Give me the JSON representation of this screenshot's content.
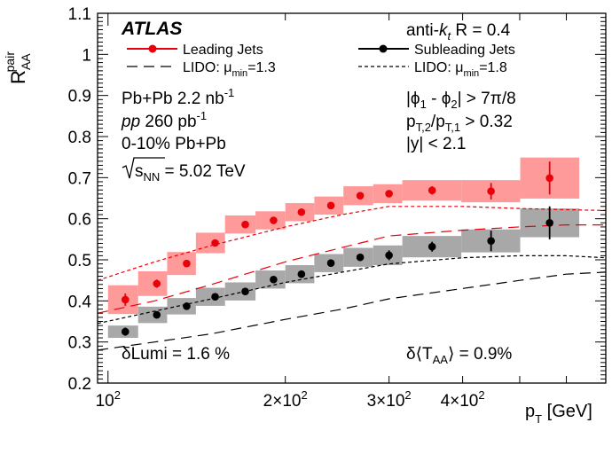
{
  "chart_data": {
    "type": "scatter",
    "title": "",
    "xlabel": "p_T [GeV]",
    "ylabel": "R_AA^pair",
    "xscale": "log",
    "xlim": [
      96,
      700
    ],
    "ylim": [
      0.2,
      1.1
    ],
    "yticks": [
      "0.2",
      "0.3",
      "0.4",
      "0.5",
      "0.6",
      "0.7",
      "0.8",
      "0.9",
      "1",
      "1.1"
    ],
    "xtick_labels": [
      {
        "value": 100,
        "base": "10",
        "exp": "2",
        "prefix": ""
      },
      {
        "value": 200,
        "base": "10",
        "exp": "2",
        "prefix": "2×"
      },
      {
        "value": 300,
        "base": "10",
        "exp": "2",
        "prefix": "3×"
      },
      {
        "value": 400,
        "base": "10",
        "exp": "2",
        "prefix": "4×"
      }
    ],
    "series": [
      {
        "name": "Leading Jets",
        "color": "#e8000b",
        "band_color": "#ff9a9a",
        "x": [
          107,
          121,
          136,
          152,
          171,
          191,
          213,
          239,
          268,
          300,
          355,
          447,
          562
        ],
        "y": [
          0.403,
          0.442,
          0.491,
          0.541,
          0.586,
          0.596,
          0.616,
          0.632,
          0.656,
          0.661,
          0.669,
          0.667,
          0.699
        ],
        "stat_err": [
          0.015,
          0.01,
          0.008,
          0.006,
          0.005,
          0.005,
          0.005,
          0.005,
          0.007,
          0.008,
          0.01,
          0.02,
          0.04
        ],
        "sys_lo": [
          0.035,
          0.03,
          0.028,
          0.025,
          0.022,
          0.022,
          0.022,
          0.022,
          0.023,
          0.023,
          0.025,
          0.027,
          0.05
        ],
        "sys_hi": [
          0.035,
          0.03,
          0.028,
          0.025,
          0.022,
          0.022,
          0.022,
          0.022,
          0.023,
          0.023,
          0.025,
          0.027,
          0.05
        ],
        "bin_edges": [
          100,
          112.5,
          126,
          141,
          158,
          178,
          200,
          224,
          251,
          282,
          316,
          398,
          501,
          631
        ]
      },
      {
        "name": "Subleading Jets",
        "color": "#000000",
        "band_color": "#a8a8a8",
        "x": [
          107,
          121,
          136,
          152,
          171,
          191,
          213,
          239,
          268,
          300,
          355,
          447,
          562
        ],
        "y": [
          0.325,
          0.366,
          0.387,
          0.41,
          0.423,
          0.452,
          0.465,
          0.492,
          0.506,
          0.511,
          0.532,
          0.546,
          0.59
        ],
        "stat_err": [
          0.01,
          0.008,
          0.006,
          0.006,
          0.006,
          0.006,
          0.007,
          0.007,
          0.008,
          0.012,
          0.012,
          0.025,
          0.04
        ],
        "sys_lo": [
          0.015,
          0.02,
          0.02,
          0.022,
          0.022,
          0.022,
          0.022,
          0.022,
          0.023,
          0.024,
          0.026,
          0.028,
          0.035
        ],
        "sys_hi": [
          0.015,
          0.02,
          0.02,
          0.022,
          0.022,
          0.022,
          0.022,
          0.022,
          0.023,
          0.024,
          0.026,
          0.028,
          0.035
        ],
        "bin_edges": [
          100,
          112.5,
          126,
          141,
          158,
          178,
          200,
          224,
          251,
          282,
          316,
          398,
          501,
          631
        ]
      }
    ],
    "models": [
      {
        "name": "LIDO: μmin=1.3 (leading)",
        "color": "#e8000b",
        "style": "dashed",
        "x": [
          96,
          120,
          150,
          200,
          250,
          300,
          400,
          500,
          600,
          700
        ],
        "y": [
          0.37,
          0.4,
          0.44,
          0.495,
          0.53,
          0.558,
          0.572,
          0.58,
          0.585,
          0.585
        ]
      },
      {
        "name": "LIDO: μmin=1.8 (leading)",
        "color": "#e8000b",
        "style": "dotted",
        "x": [
          96,
          120,
          150,
          200,
          250,
          300,
          400,
          500,
          600,
          700
        ],
        "y": [
          0.45,
          0.495,
          0.535,
          0.58,
          0.61,
          0.63,
          0.63,
          0.625,
          0.622,
          0.62
        ]
      },
      {
        "name": "LIDO: μmin=1.3 (subleading)",
        "color": "#000000",
        "style": "dashed",
        "x": [
          96,
          120,
          150,
          200,
          250,
          300,
          400,
          500,
          600,
          700
        ],
        "y": [
          0.28,
          0.3,
          0.32,
          0.355,
          0.38,
          0.405,
          0.43,
          0.45,
          0.465,
          0.47
        ]
      },
      {
        "name": "LIDO: μmin=1.8 (subleading)",
        "color": "#000000",
        "style": "dotted",
        "x": [
          96,
          120,
          150,
          200,
          250,
          300,
          400,
          500,
          600,
          700
        ],
        "y": [
          0.345,
          0.375,
          0.405,
          0.445,
          0.47,
          0.49,
          0.505,
          0.51,
          0.51,
          0.505
        ]
      }
    ],
    "legend": {
      "leading_label": "Leading Jets",
      "subleading_label": "Subleading Jets",
      "lido13_label": "LIDO: μ",
      "lido13_sub": "min",
      "lido13_val": "=1.3",
      "lido18_label": "LIDO: μ",
      "lido18_sub": "min",
      "lido18_val": "=1.8"
    },
    "annotations": {
      "atlas": "ATLAS",
      "antikt_prefix": "anti-",
      "antikt_k": "k",
      "antikt_sub": "t",
      "antikt_suffix": " R = 0.4",
      "pbpb_lumi": "Pb+Pb 2.2 nb",
      "pbpb_lumi_exp": "-1",
      "pp_label": "pp",
      "pp_lumi": " 260 pb",
      "pp_lumi_exp": "-1",
      "centrality": "0-10% Pb+Pb",
      "sqrts_s": "s",
      "sqrts_sub": "NN",
      "sqrts_val": " = 5.02 TeV",
      "dphi": "|ϕ",
      "dphi_1": "1",
      "dphi_mid": " - ϕ",
      "dphi_2": "2",
      "dphi_val": "| > 7π/8",
      "pt_ratio_p1": "p",
      "pt_ratio_s1": "T,2",
      "pt_ratio_p2": "/p",
      "pt_ratio_s2": "T,1",
      "pt_ratio_val": " > 0.32",
      "rap": "|y| < 2.1",
      "dlumi": "δLumi = 1.6 %",
      "dtaa_prefix": "δ⟨T",
      "dtaa_sub": "AA",
      "dtaa_val": "⟩ = 0.9%"
    }
  }
}
